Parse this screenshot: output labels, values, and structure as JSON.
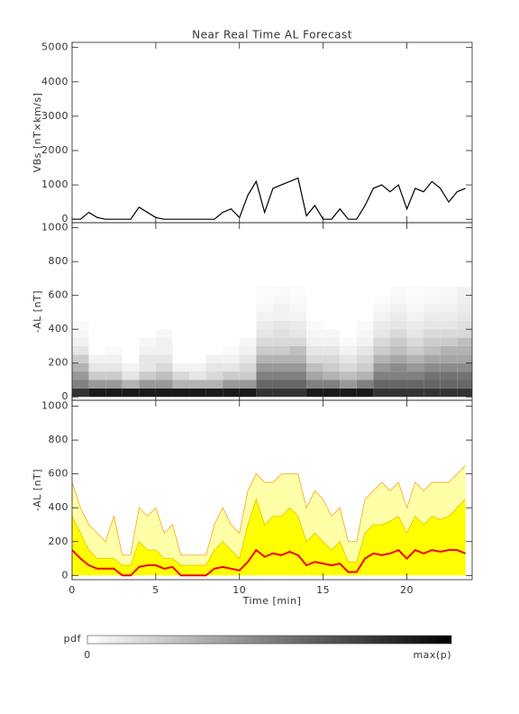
{
  "chart_data": [
    {
      "type": "line",
      "title": "Near Real Time AL Forecast",
      "ylabel": "VBs [nT×km/s]",
      "color": "#000000",
      "x": [
        0,
        0.5,
        1,
        1.5,
        2,
        2.5,
        3,
        3.5,
        4,
        4.5,
        5,
        5.5,
        6,
        6.5,
        7,
        7.5,
        8,
        8.5,
        9,
        9.5,
        10,
        10.5,
        11,
        11.5,
        12,
        12.5,
        13,
        13.5,
        14,
        14.5,
        15,
        15.5,
        16,
        16.5,
        17,
        17.5,
        18,
        18.5,
        19,
        19.5,
        20,
        20.5,
        21,
        21.5,
        22,
        22.5,
        23,
        23.5
      ],
      "values": [
        0,
        0,
        200,
        50,
        0,
        0,
        0,
        0,
        350,
        200,
        50,
        0,
        0,
        0,
        0,
        0,
        0,
        0,
        200,
        300,
        50,
        700,
        1100,
        200,
        900,
        1000,
        1100,
        1200,
        100,
        400,
        0,
        0,
        300,
        0,
        0,
        400,
        900,
        1000,
        800,
        1000,
        300,
        900,
        800,
        1100,
        900,
        500,
        800,
        900
      ],
      "xlim": [
        0,
        23.9
      ],
      "xticks": [
        0,
        5,
        10,
        15,
        20
      ],
      "xtick_labels": false,
      "ylim": [
        -100,
        5150
      ],
      "yticks": [
        0,
        1000,
        2000,
        3000,
        4000,
        5000
      ]
    },
    {
      "type": "heatmap",
      "ylabel": "-AL [nT]",
      "x_edges": [
        0,
        1,
        2,
        3,
        4,
        5,
        6,
        7,
        8,
        9,
        10,
        11,
        12,
        13,
        14,
        15,
        16,
        17,
        18,
        19,
        20,
        21,
        22,
        23,
        23.9
      ],
      "y_edges": [
        0,
        50,
        100,
        150,
        200,
        250,
        300,
        350,
        400,
        450,
        500,
        550,
        600,
        650
      ],
      "values": [
        [
          0.8,
          0.5,
          0.4,
          0.3,
          0.2,
          0.1,
          0.05,
          0.03,
          0.02,
          0,
          0,
          0,
          0
        ],
        [
          0.9,
          0.4,
          0.2,
          0.1,
          0.05,
          0,
          0,
          0,
          0,
          0,
          0,
          0,
          0
        ],
        [
          0.9,
          0.4,
          0.2,
          0.1,
          0.05,
          0.02,
          0,
          0,
          0,
          0,
          0,
          0,
          0
        ],
        [
          0.9,
          0.3,
          0.1,
          0.05,
          0,
          0,
          0,
          0,
          0,
          0,
          0,
          0,
          0
        ],
        [
          0.9,
          0.4,
          0.2,
          0.1,
          0.1,
          0.05,
          0.03,
          0,
          0,
          0,
          0,
          0,
          0
        ],
        [
          0.9,
          0.4,
          0.25,
          0.15,
          0.1,
          0.05,
          0.05,
          0.03,
          0,
          0,
          0,
          0,
          0
        ],
        [
          0.9,
          0.3,
          0.15,
          0.05,
          0,
          0,
          0,
          0,
          0,
          0,
          0,
          0,
          0
        ],
        [
          0.9,
          0.3,
          0.1,
          0.05,
          0,
          0,
          0,
          0,
          0,
          0,
          0,
          0,
          0
        ],
        [
          0.9,
          0.3,
          0.15,
          0.1,
          0.05,
          0,
          0,
          0,
          0,
          0,
          0,
          0,
          0
        ],
        [
          0.9,
          0.4,
          0.2,
          0.1,
          0.05,
          0.02,
          0,
          0,
          0,
          0,
          0,
          0,
          0
        ],
        [
          0.9,
          0.4,
          0.2,
          0.15,
          0.1,
          0.05,
          0.03,
          0,
          0,
          0,
          0,
          0,
          0
        ],
        [
          0.8,
          0.6,
          0.5,
          0.4,
          0.3,
          0.2,
          0.15,
          0.1,
          0.08,
          0.05,
          0.03,
          0.02,
          0.01
        ],
        [
          0.8,
          0.6,
          0.5,
          0.4,
          0.3,
          0.2,
          0.15,
          0.12,
          0.1,
          0.05,
          0.05,
          0.03,
          0.02
        ],
        [
          0.8,
          0.6,
          0.5,
          0.4,
          0.3,
          0.25,
          0.15,
          0.1,
          0.08,
          0.05,
          0.03,
          0.02,
          0.01
        ],
        [
          0.9,
          0.5,
          0.35,
          0.25,
          0.15,
          0.1,
          0.05,
          0.03,
          0.02,
          0,
          0,
          0,
          0
        ],
        [
          0.9,
          0.5,
          0.3,
          0.2,
          0.15,
          0.1,
          0.05,
          0.03,
          0,
          0,
          0,
          0,
          0
        ],
        [
          0.9,
          0.4,
          0.25,
          0.15,
          0.1,
          0.05,
          0.02,
          0,
          0,
          0,
          0,
          0,
          0
        ],
        [
          0.9,
          0.5,
          0.3,
          0.2,
          0.15,
          0.1,
          0.05,
          0.03,
          0.02,
          0,
          0,
          0,
          0
        ],
        [
          0.8,
          0.6,
          0.5,
          0.4,
          0.3,
          0.2,
          0.15,
          0.1,
          0.08,
          0.05,
          0.03,
          0.01,
          0
        ],
        [
          0.8,
          0.6,
          0.5,
          0.45,
          0.35,
          0.25,
          0.2,
          0.15,
          0.1,
          0.08,
          0.05,
          0.03,
          0.02
        ],
        [
          0.8,
          0.6,
          0.5,
          0.4,
          0.3,
          0.2,
          0.15,
          0.1,
          0.08,
          0.05,
          0.03,
          0.02,
          0.01
        ],
        [
          0.8,
          0.6,
          0.55,
          0.45,
          0.35,
          0.25,
          0.2,
          0.15,
          0.1,
          0.08,
          0.05,
          0.03,
          0.02
        ],
        [
          0.8,
          0.6,
          0.55,
          0.45,
          0.35,
          0.3,
          0.2,
          0.15,
          0.1,
          0.08,
          0.06,
          0.04,
          0.03
        ],
        [
          0.8,
          0.6,
          0.55,
          0.45,
          0.35,
          0.3,
          0.25,
          0.15,
          0.12,
          0.1,
          0.08,
          0.06,
          0.05
        ]
      ],
      "xlim": [
        0,
        23.9
      ],
      "xticks": [
        0,
        5,
        10,
        15,
        20
      ],
      "xtick_labels": false,
      "ylim": [
        -20,
        1030
      ],
      "yticks": [
        0,
        200,
        400,
        600,
        800,
        1000
      ]
    },
    {
      "type": "area",
      "ylabel": "-AL [nT]",
      "xlabel": "Time [min]",
      "x": [
        0,
        0.5,
        1,
        1.5,
        2,
        2.5,
        3,
        3.5,
        4,
        4.5,
        5,
        5.5,
        6,
        6.5,
        7,
        7.5,
        8,
        8.5,
        9,
        9.5,
        10,
        10.5,
        11,
        11.5,
        12,
        12.5,
        13,
        13.5,
        14,
        14.5,
        15,
        15.5,
        16,
        16.5,
        17,
        17.5,
        18,
        18.5,
        19,
        19.5,
        20,
        20.5,
        21,
        21.5,
        22,
        22.5,
        23,
        23.5
      ],
      "series": [
        {
          "color": "#ffffa8",
          "edge_color": "#f5a623",
          "style": "fill",
          "values": [
            550,
            400,
            300,
            250,
            200,
            350,
            120,
            120,
            400,
            350,
            400,
            250,
            300,
            120,
            120,
            120,
            120,
            300,
            400,
            300,
            250,
            500,
            600,
            550,
            550,
            600,
            600,
            600,
            400,
            500,
            450,
            350,
            400,
            200,
            200,
            450,
            500,
            550,
            500,
            550,
            400,
            550,
            500,
            550,
            550,
            550,
            600,
            650
          ]
        },
        {
          "color": "#ffff00",
          "edge_color": "#e8c000",
          "style": "fill",
          "values": [
            350,
            250,
            150,
            100,
            100,
            100,
            60,
            60,
            200,
            150,
            150,
            100,
            100,
            60,
            60,
            60,
            60,
            150,
            200,
            150,
            100,
            300,
            450,
            300,
            350,
            350,
            400,
            350,
            200,
            250,
            200,
            150,
            200,
            80,
            80,
            250,
            300,
            300,
            320,
            350,
            250,
            350,
            300,
            350,
            330,
            350,
            400,
            450
          ]
        },
        {
          "color": "#ee0000",
          "style": "line",
          "values": [
            150,
            100,
            60,
            40,
            40,
            40,
            0,
            0,
            50,
            60,
            60,
            40,
            50,
            0,
            0,
            0,
            0,
            40,
            50,
            40,
            30,
            80,
            150,
            110,
            130,
            120,
            140,
            120,
            60,
            80,
            70,
            60,
            70,
            20,
            20,
            100,
            130,
            120,
            130,
            150,
            100,
            150,
            130,
            150,
            140,
            150,
            150,
            130
          ]
        }
      ],
      "xlim": [
        0,
        23.9
      ],
      "xticks": [
        0,
        5,
        10,
        15,
        20
      ],
      "xtick_labels": true,
      "ylim": [
        -25,
        1035
      ],
      "yticks": [
        0,
        200,
        400,
        600,
        800,
        1000
      ]
    }
  ],
  "colorbar": {
    "label": "pdf",
    "min_label": "0",
    "max_label": "max(p)"
  }
}
